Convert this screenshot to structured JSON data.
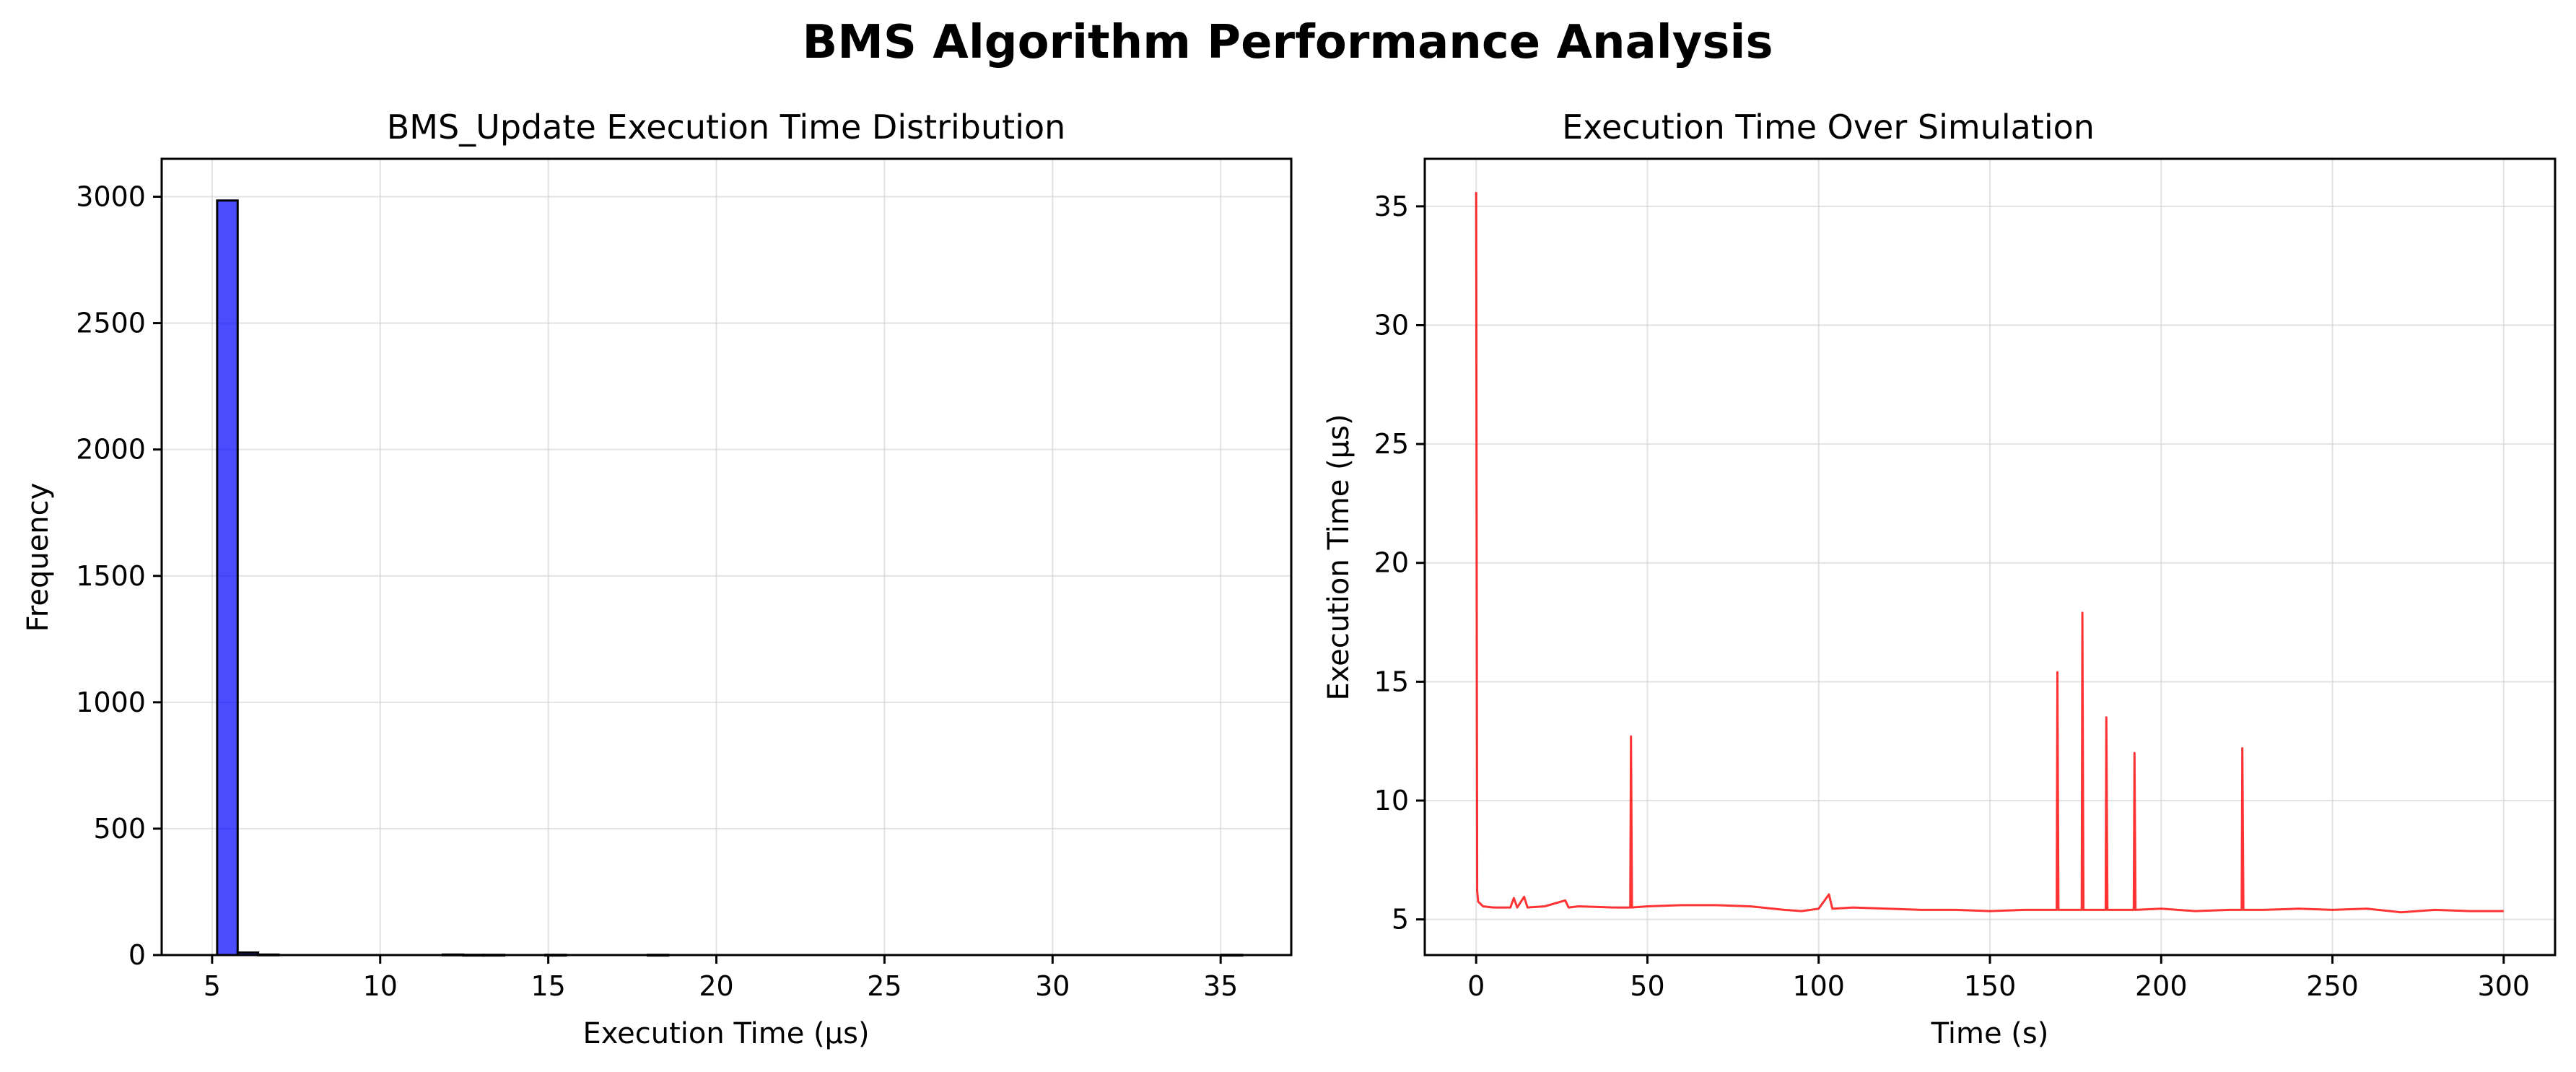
{
  "figure_title": "BMS Algorithm Performance Analysis",
  "chart_data": [
    {
      "type": "bar",
      "title": "BMS_Update Execution Time Distribution",
      "xlabel": "Execution Time (µs)",
      "ylabel": "Frequency",
      "xlim": [
        3.5,
        37.1
      ],
      "ylim": [
        0,
        3150
      ],
      "xticks": [
        5,
        10,
        15,
        20,
        25,
        30,
        35
      ],
      "yticks": [
        0,
        500,
        1000,
        1500,
        2000,
        2500,
        3000
      ],
      "grid": true,
      "bar_color": "#0000ff",
      "bar_edge": "#000000",
      "bin_width": 0.61,
      "bins": [
        {
          "x0": 5.15,
          "x1": 5.76,
          "count": 2985
        },
        {
          "x0": 5.76,
          "x1": 6.37,
          "count": 10
        },
        {
          "x0": 6.37,
          "x1": 6.98,
          "count": 2
        },
        {
          "x0": 11.86,
          "x1": 12.47,
          "count": 2
        },
        {
          "x0": 12.47,
          "x1": 13.08,
          "count": 1
        },
        {
          "x0": 13.08,
          "x1": 13.69,
          "count": 1
        },
        {
          "x0": 14.91,
          "x1": 15.52,
          "count": 1
        },
        {
          "x0": 17.96,
          "x1": 18.57,
          "count": 1
        },
        {
          "x0": 35.03,
          "x1": 35.64,
          "count": 1
        }
      ]
    },
    {
      "type": "line",
      "title": "Execution Time Over Simulation",
      "xlabel": "Time (s)",
      "ylabel": "Execution Time (µs)",
      "xlim": [
        -15,
        315
      ],
      "ylim": [
        3.5,
        37.0
      ],
      "xticks": [
        0,
        50,
        100,
        150,
        200,
        250,
        300
      ],
      "yticks": [
        5,
        10,
        15,
        20,
        25,
        30,
        35
      ],
      "grid": true,
      "line_color": "#ff0000",
      "series": [
        {
          "baseline": 5.45,
          "points": [
            [
              0,
              35.6
            ],
            [
              0.3,
              6.2
            ],
            [
              0.6,
              5.75
            ],
            [
              2,
              5.55
            ],
            [
              5,
              5.5
            ],
            [
              10,
              5.5
            ],
            [
              11,
              5.9
            ],
            [
              12,
              5.5
            ],
            [
              14,
              5.95
            ],
            [
              15,
              5.5
            ],
            [
              20,
              5.55
            ],
            [
              26,
              5.8
            ],
            [
              27,
              5.5
            ],
            [
              30,
              5.55
            ],
            [
              40,
              5.5
            ],
            [
              45,
              5.5
            ],
            [
              45.2,
              12.7
            ],
            [
              45.5,
              5.5
            ],
            [
              50,
              5.55
            ],
            [
              60,
              5.6
            ],
            [
              70,
              5.6
            ],
            [
              80,
              5.55
            ],
            [
              90,
              5.4
            ],
            [
              95,
              5.35
            ],
            [
              100,
              5.45
            ],
            [
              103,
              6.05
            ],
            [
              104,
              5.45
            ],
            [
              110,
              5.5
            ],
            [
              120,
              5.45
            ],
            [
              130,
              5.4
            ],
            [
              140,
              5.4
            ],
            [
              150,
              5.35
            ],
            [
              160,
              5.4
            ],
            [
              169.5,
              5.4
            ],
            [
              169.7,
              15.4
            ],
            [
              170,
              5.4
            ],
            [
              176.8,
              5.4
            ],
            [
              177,
              17.9
            ],
            [
              177.3,
              5.4
            ],
            [
              183.8,
              5.4
            ],
            [
              184,
              13.5
            ],
            [
              184.3,
              5.4
            ],
            [
              192,
              5.4
            ],
            [
              192.2,
              12.0
            ],
            [
              192.5,
              5.4
            ],
            [
              200,
              5.45
            ],
            [
              210,
              5.35
            ],
            [
              220,
              5.4
            ],
            [
              223.5,
              5.4
            ],
            [
              223.7,
              12.2
            ],
            [
              224,
              5.4
            ],
            [
              230,
              5.4
            ],
            [
              240,
              5.45
            ],
            [
              250,
              5.4
            ],
            [
              260,
              5.45
            ],
            [
              270,
              5.3
            ],
            [
              280,
              5.4
            ],
            [
              290,
              5.35
            ],
            [
              300,
              5.35
            ]
          ]
        }
      ]
    }
  ]
}
